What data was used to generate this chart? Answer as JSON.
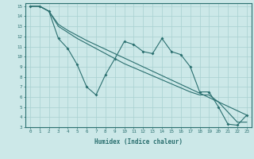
{
  "xlabel": "Humidex (Indice chaleur)",
  "bg_color": "#cce8e8",
  "line_color": "#2a6f6f",
  "xlim": [
    -0.5,
    23.5
  ],
  "ylim": [
    3,
    15.3
  ],
  "xticks": [
    0,
    1,
    2,
    3,
    4,
    5,
    6,
    7,
    8,
    9,
    10,
    11,
    12,
    13,
    14,
    15,
    16,
    17,
    18,
    19,
    20,
    21,
    22,
    23
  ],
  "yticks": [
    3,
    4,
    5,
    6,
    7,
    8,
    9,
    10,
    11,
    12,
    13,
    14,
    15
  ],
  "series1_x": [
    0,
    1,
    2,
    3,
    4,
    5,
    6,
    7,
    8,
    9,
    10,
    11,
    12,
    13,
    14,
    15,
    16,
    17,
    18,
    19,
    20,
    21,
    22,
    23
  ],
  "series1_y": [
    15,
    15,
    14.5,
    11.8,
    10.8,
    9.2,
    7.0,
    6.2,
    8.2,
    9.8,
    11.5,
    11.2,
    10.5,
    10.3,
    11.8,
    10.5,
    10.2,
    9.0,
    6.5,
    6.5,
    5.0,
    3.3,
    3.2,
    4.2
  ],
  "series2_x": [
    0,
    1,
    2,
    3,
    4,
    5,
    6,
    23
  ],
  "series2_y": [
    15,
    15,
    14.5,
    13.2,
    12.6,
    12.1,
    11.6,
    4.2
  ],
  "series3_x": [
    0,
    1,
    2,
    3,
    4,
    5,
    6,
    7,
    8,
    9,
    10,
    11,
    12,
    13,
    14,
    15,
    16,
    17,
    18,
    19,
    20,
    21,
    22,
    23
  ],
  "series3_y": [
    15,
    15,
    14.5,
    13.0,
    12.4,
    11.8,
    11.3,
    10.8,
    10.3,
    9.8,
    9.3,
    8.9,
    8.5,
    8.1,
    7.7,
    7.3,
    6.9,
    6.5,
    6.2,
    6.2,
    5.5,
    4.5,
    3.5,
    3.5
  ]
}
